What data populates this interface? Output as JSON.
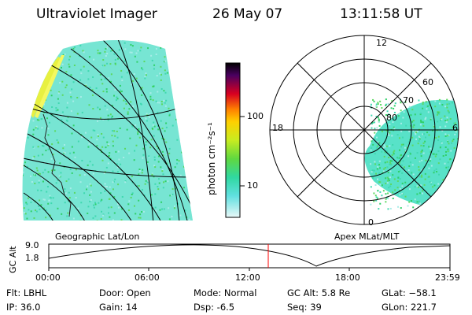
{
  "header": {
    "instrument": "Ultraviolet Imager",
    "date": "26 May 07",
    "time": "13:11:58 UT"
  },
  "colorbar": {
    "label": "photon cm⁻²s⁻¹",
    "ticks": [
      "100",
      "10"
    ]
  },
  "polar_plot": {
    "label": "Apex MLat/MLT",
    "mlt_labels": [
      "12",
      "18",
      "6",
      "0"
    ],
    "mlat_labels": [
      "60",
      "70",
      "80"
    ]
  },
  "geo_plot": {
    "label": "Geographic Lat/Lon"
  },
  "altitude_strip": {
    "axis_label": "GC Alt",
    "y_ticks": [
      "9.0",
      "1.8"
    ],
    "x_ticks": [
      "00:00",
      "06:00",
      "12:00",
      "18:00",
      "23:59"
    ]
  },
  "info": {
    "filter": "Flt: LBHL",
    "ip": "IP: 36.0",
    "door": "Door: Open",
    "gain": "Gain: 14",
    "mode": "Mode: Normal",
    "dsp": "Dsp:    -6.5",
    "gc_alt": "GC Alt: 5.8 Re",
    "seq": "Seq: 39",
    "glat": "GLat: −58.1",
    "glon": "GLon: 221.7"
  },
  "colors": {
    "cyan": "#40e0c8",
    "green": "#30d060",
    "yellow": "#e8f020",
    "marker": "#ff0000"
  }
}
